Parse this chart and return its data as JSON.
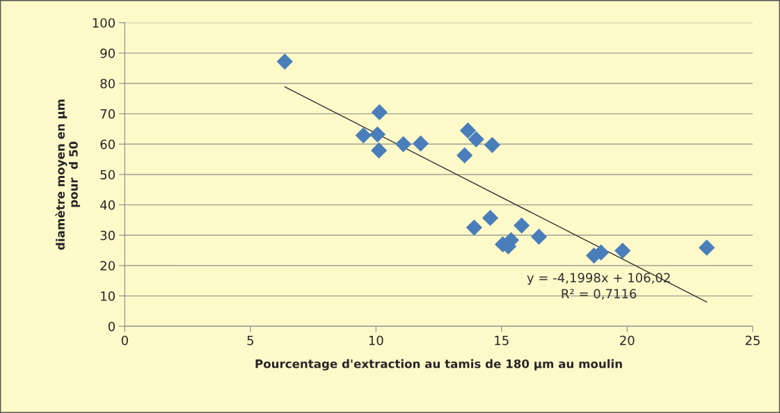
{
  "chart_data": {
    "type": "scatter",
    "xlabel": "Pourcentage d'extraction au tamis de 180 µm au moulin",
    "ylabel": "diamètre moyen en µm\npour  d 50",
    "xlim": [
      0,
      25
    ],
    "xticks": [
      0,
      5,
      10,
      15,
      20,
      25
    ],
    "ylim": [
      0,
      100
    ],
    "yticks": [
      0,
      10,
      20,
      30,
      40,
      50,
      60,
      70,
      80,
      90,
      100
    ],
    "grid": "y",
    "legend": false,
    "marker": "diamond",
    "series": [
      {
        "color": "#4a7ebb",
        "x": [
          6.37,
          9.5,
          10.06,
          10.14,
          10.12,
          11.09,
          11.78,
          13.66,
          13.53,
          13.99,
          14.63,
          13.91,
          14.55,
          15.8,
          16.49,
          15.05,
          15.38,
          15.27,
          18.68,
          18.96,
          19.82,
          23.17
        ],
        "values": [
          87.2,
          62.9,
          63.2,
          70.5,
          57.9,
          60.0,
          60.2,
          64.5,
          56.3,
          61.6,
          59.7,
          32.5,
          35.7,
          33.2,
          29.5,
          27.0,
          28.4,
          26.3,
          23.3,
          24.3,
          24.9,
          25.9
        ]
      },
      {
        "type": "line",
        "color": "#303030",
        "marker": "none",
        "line_style": "solid",
        "x": [
          6.37,
          23.17
        ],
        "values": [
          78.9,
          8.0
        ]
      }
    ],
    "annotations": [
      "y = -4,1998x + 106,02\nR² = 0,7116"
    ]
  }
}
